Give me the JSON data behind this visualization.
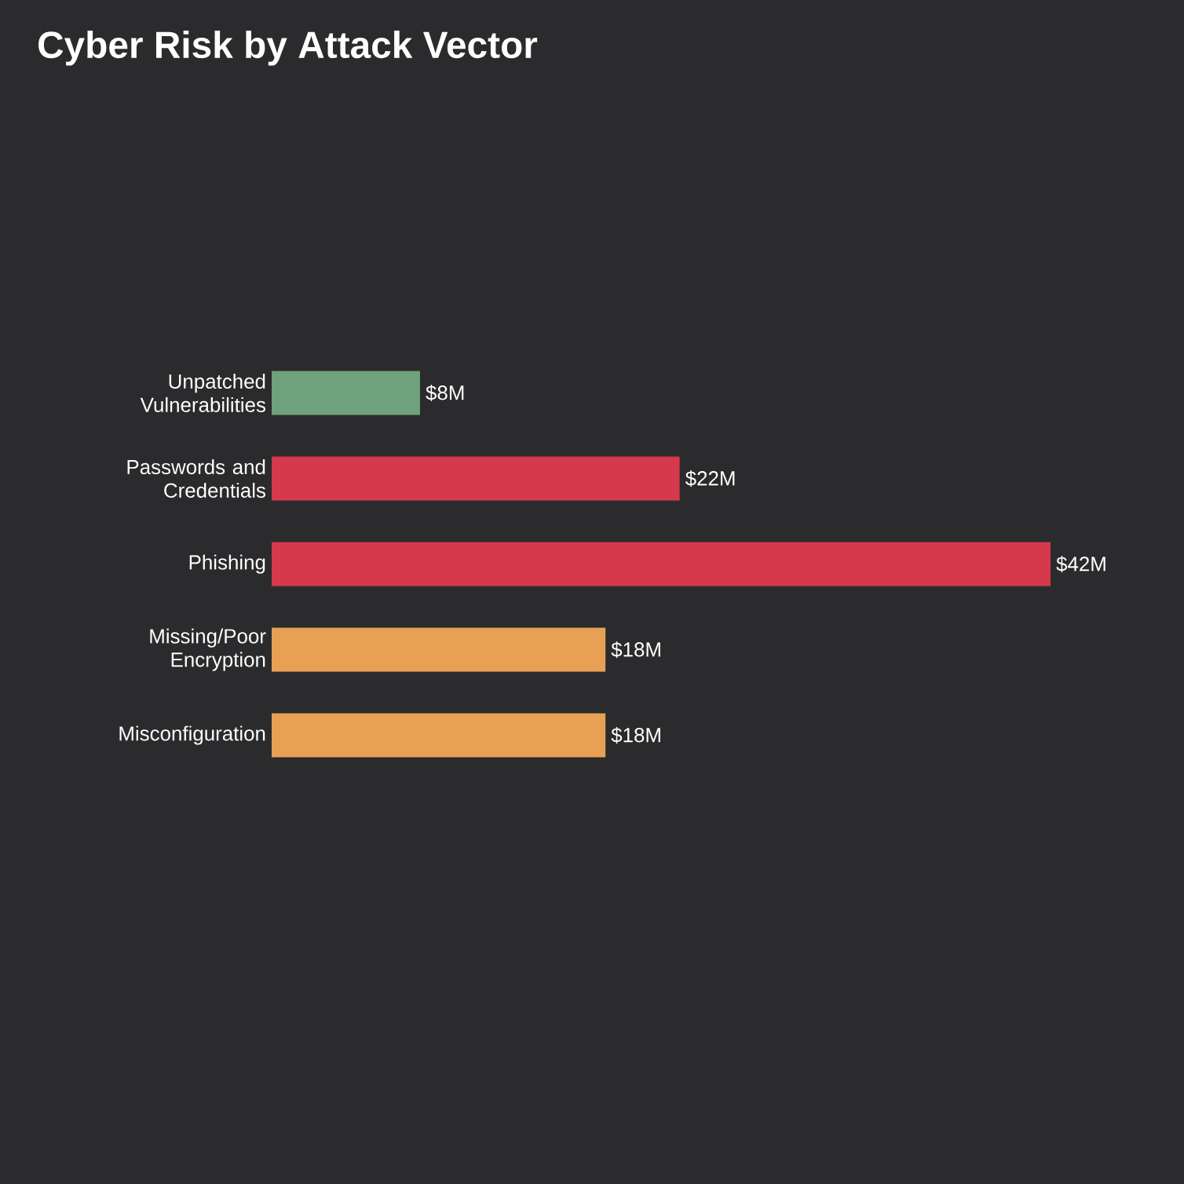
{
  "chart_data": {
    "type": "bar",
    "orientation": "horizontal",
    "title": "Cyber Risk by Attack Vector",
    "categories": [
      "Unpatched Vulnerabilities",
      "Passwords and Credentials",
      "Phishing",
      "Missing/Poor Encryption",
      "Misconfiguration"
    ],
    "values": [
      8,
      22,
      42,
      18,
      18
    ],
    "colors": [
      "#6fa27c",
      "#d6394c",
      "#d6394c",
      "#e8a055",
      "#e8a055"
    ],
    "value_labels": [
      "$8M",
      "$22M",
      "$42M",
      "$18M",
      "$18M"
    ]
  }
}
